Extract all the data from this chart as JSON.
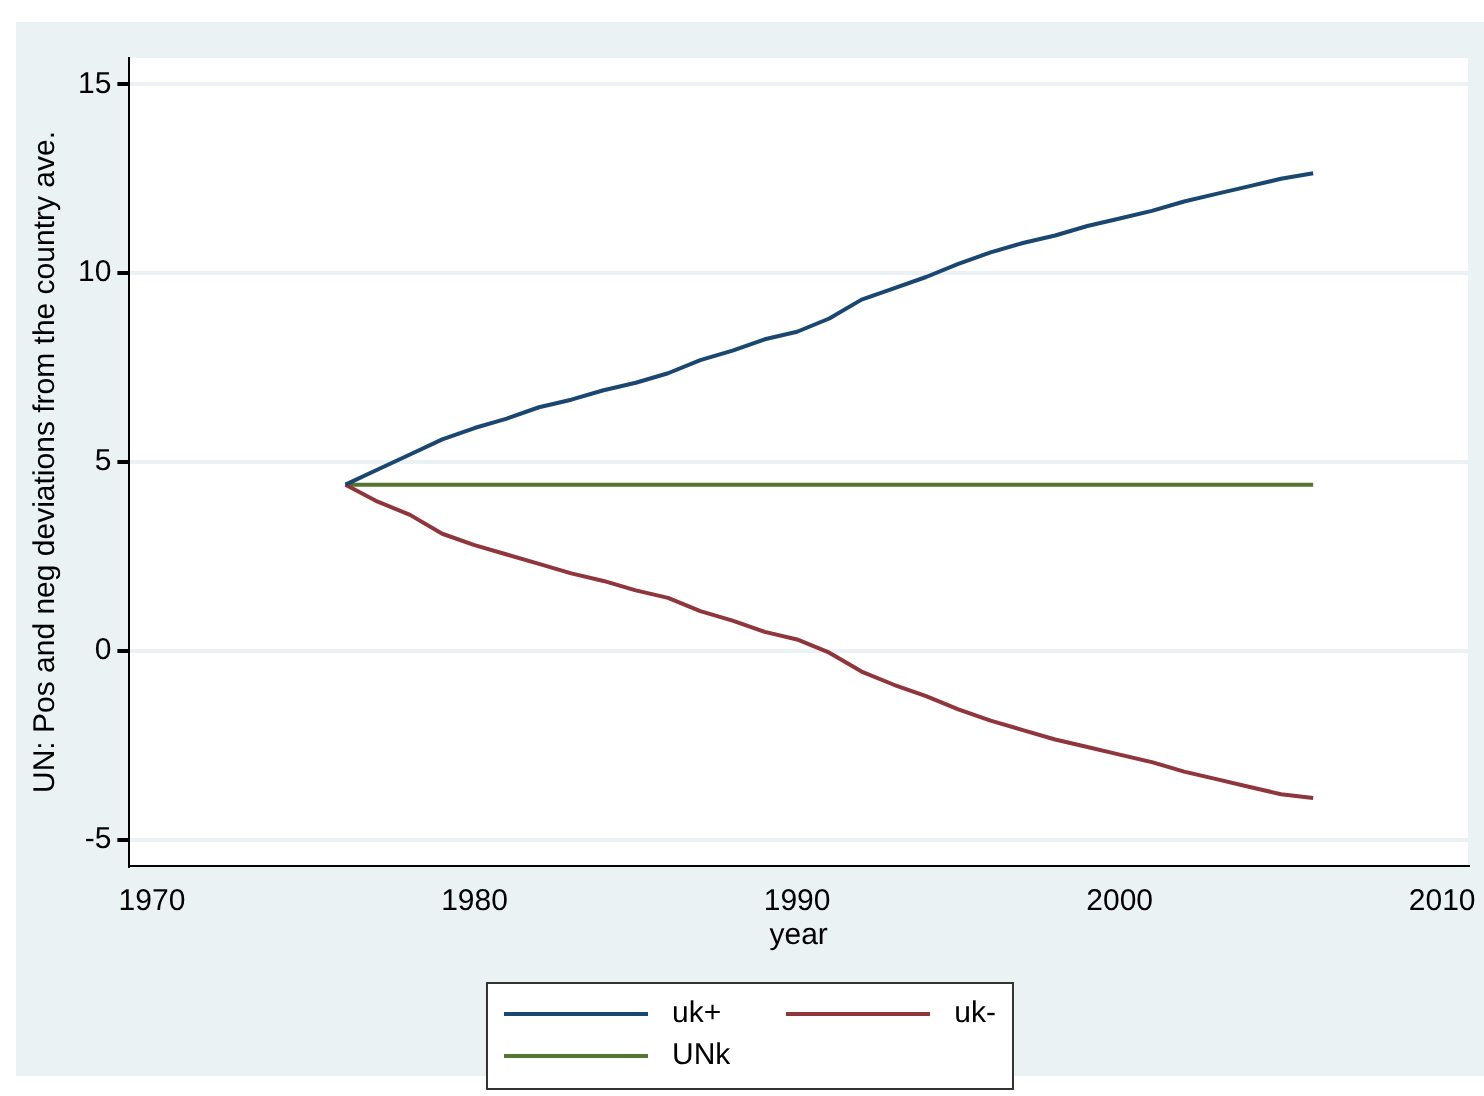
{
  "chart_data": {
    "type": "line",
    "xlabel": "year",
    "ylabel": "UN: Pos and neg deviations from the country ave.",
    "x": [
      1976,
      1977,
      1978,
      1979,
      1980,
      1981,
      1982,
      1983,
      1984,
      1985,
      1986,
      1987,
      1988,
      1989,
      1990,
      1991,
      1992,
      1993,
      1994,
      1995,
      1996,
      1997,
      1998,
      1999,
      2000,
      2001,
      2002,
      2003,
      2004,
      2005,
      2006
    ],
    "series": [
      {
        "name": "uk+",
        "color": "#1a476f",
        "values": [
          4.4,
          4.8,
          5.2,
          5.6,
          5.9,
          6.15,
          6.45,
          6.65,
          6.9,
          7.1,
          7.35,
          7.7,
          7.95,
          8.25,
          8.45,
          8.8,
          9.3,
          9.6,
          9.9,
          10.25,
          10.55,
          10.8,
          11.0,
          11.25,
          11.45,
          11.65,
          11.9,
          12.1,
          12.3,
          12.5,
          12.65
        ]
      },
      {
        "name": "uk-",
        "color": "#90353b",
        "values": [
          4.4,
          3.95,
          3.6,
          3.1,
          2.8,
          2.55,
          2.3,
          2.05,
          1.85,
          1.6,
          1.4,
          1.05,
          0.8,
          0.5,
          0.3,
          -0.05,
          -0.55,
          -0.9,
          -1.2,
          -1.55,
          -1.85,
          -2.1,
          -2.35,
          -2.55,
          -2.75,
          -2.95,
          -3.2,
          -3.4,
          -3.6,
          -3.8,
          -3.9
        ]
      },
      {
        "name": "UNk",
        "color": "#55752f",
        "values": [
          4.4,
          4.4,
          4.4,
          4.4,
          4.4,
          4.4,
          4.4,
          4.4,
          4.4,
          4.4,
          4.4,
          4.4,
          4.4,
          4.4,
          4.4,
          4.4,
          4.4,
          4.4,
          4.4,
          4.4,
          4.4,
          4.4,
          4.4,
          4.4,
          4.4,
          4.4,
          4.4,
          4.4,
          4.4,
          4.4,
          4.4
        ]
      }
    ],
    "xlim": [
      1969.3,
      2010.8
    ],
    "xticks": [
      1970,
      1980,
      1990,
      2000,
      2010
    ],
    "ylim": [
      -5.7,
      15.7
    ],
    "yticks": [
      -5,
      0,
      5,
      10,
      15
    ],
    "grid": "y",
    "legend": "bottom",
    "marker": "none",
    "line_style": "solid"
  }
}
